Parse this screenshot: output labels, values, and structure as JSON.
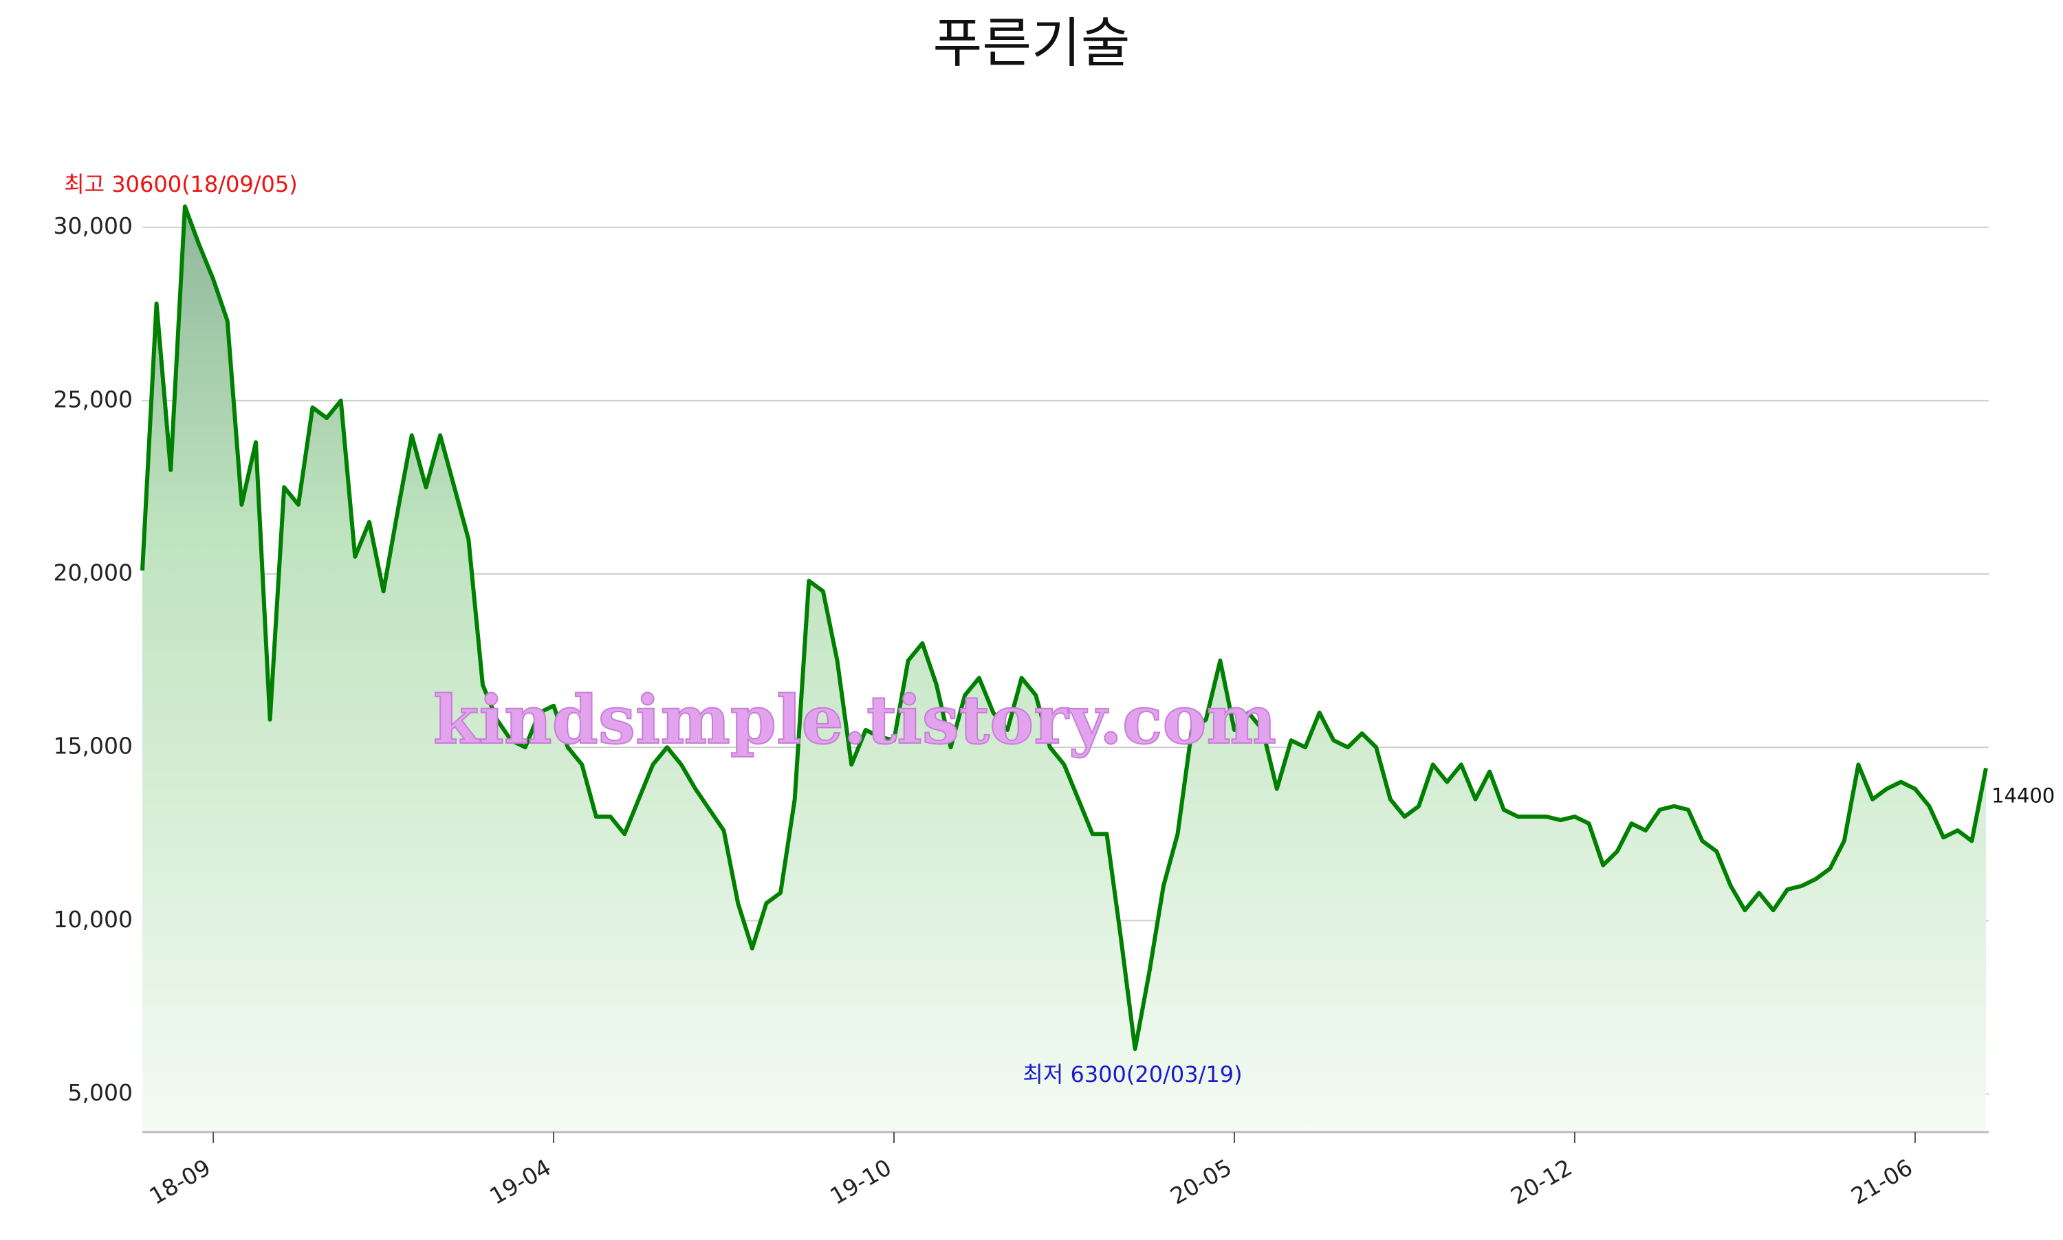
{
  "chart_data": {
    "type": "line",
    "title": "푸른기술",
    "categories": [
      null,
      null,
      null,
      null,
      null,
      "18-09",
      null,
      null,
      null,
      null,
      null,
      null,
      null,
      null,
      null,
      null,
      null,
      null,
      null,
      null,
      null,
      null,
      null,
      null,
      null,
      null,
      null,
      null,
      null,
      "19-04",
      null,
      null,
      null,
      null,
      null,
      null,
      null,
      null,
      null,
      null,
      null,
      null,
      null,
      null,
      null,
      null,
      null,
      null,
      null,
      null,
      null,
      null,
      null,
      "19-10",
      null,
      null,
      null,
      null,
      null,
      null,
      null,
      null,
      null,
      null,
      null,
      null,
      null,
      null,
      null,
      null,
      null,
      null,
      null,
      null,
      null,
      null,
      null,
      "20-05",
      null,
      null,
      null,
      null,
      null,
      null,
      null,
      null,
      null,
      null,
      null,
      null,
      null,
      null,
      null,
      null,
      null,
      null,
      null,
      null,
      null,
      null,
      null,
      "20-12",
      null,
      null,
      null,
      null,
      null,
      null,
      null,
      null,
      null,
      null,
      null,
      null,
      null,
      null,
      null,
      null,
      null,
      null,
      null,
      null,
      null,
      null,
      null,
      "21-06",
      null,
      null,
      null,
      null,
      null
    ],
    "values": [
      20100,
      27800,
      23000,
      30600,
      29500,
      28500,
      27300,
      22000,
      23800,
      15800,
      22500,
      22000,
      24800,
      24500,
      25000,
      20500,
      21500,
      19500,
      21800,
      24000,
      22500,
      24000,
      22500,
      21000,
      16800,
      15800,
      15200,
      15000,
      16000,
      16200,
      15000,
      14500,
      13000,
      13000,
      12500,
      13500,
      14500,
      15000,
      14500,
      13800,
      13200,
      12600,
      10500,
      9200,
      10500,
      10800,
      13500,
      19800,
      19500,
      17500,
      14500,
      15500,
      15300,
      15200,
      17500,
      18000,
      16800,
      15000,
      16500,
      17000,
      16000,
      15500,
      17000,
      16500,
      15000,
      14500,
      13500,
      12500,
      12500,
      9500,
      6300,
      8500,
      11000,
      12500,
      15500,
      15800,
      17500,
      15500,
      16000,
      15500,
      13800,
      15200,
      15000,
      16000,
      15200,
      15000,
      15400,
      15000,
      13500,
      13000,
      13300,
      14500,
      14000,
      14500,
      13500,
      14300,
      13200,
      13000,
      13000,
      13000,
      12900,
      13000,
      12800,
      11600,
      12000,
      12800,
      12600,
      13200,
      13300,
      13200,
      12300,
      12000,
      11000,
      10300,
      10800,
      10300,
      10900,
      11000,
      11200,
      11500,
      12300,
      14500,
      13500,
      13800,
      14000,
      13800,
      13300,
      12400,
      12600,
      12300,
      14400
    ],
    "color": "#008000",
    "ylim": [
      3900,
      31600
    ],
    "yticks": [
      {
        "value": 5000,
        "label": "5,000"
      },
      {
        "value": 10000,
        "label": "10,000"
      },
      {
        "value": 15000,
        "label": "15,000"
      },
      {
        "value": 20000,
        "label": "20,000"
      },
      {
        "value": 25000,
        "label": "25,000"
      },
      {
        "value": 30000,
        "label": "30,000"
      }
    ],
    "grid": true,
    "max_annotation": "최고 30600(18/09/05)",
    "min_annotation": "최저 6300(20/03/19)",
    "watermark": "kindsimple.tistory.com"
  }
}
